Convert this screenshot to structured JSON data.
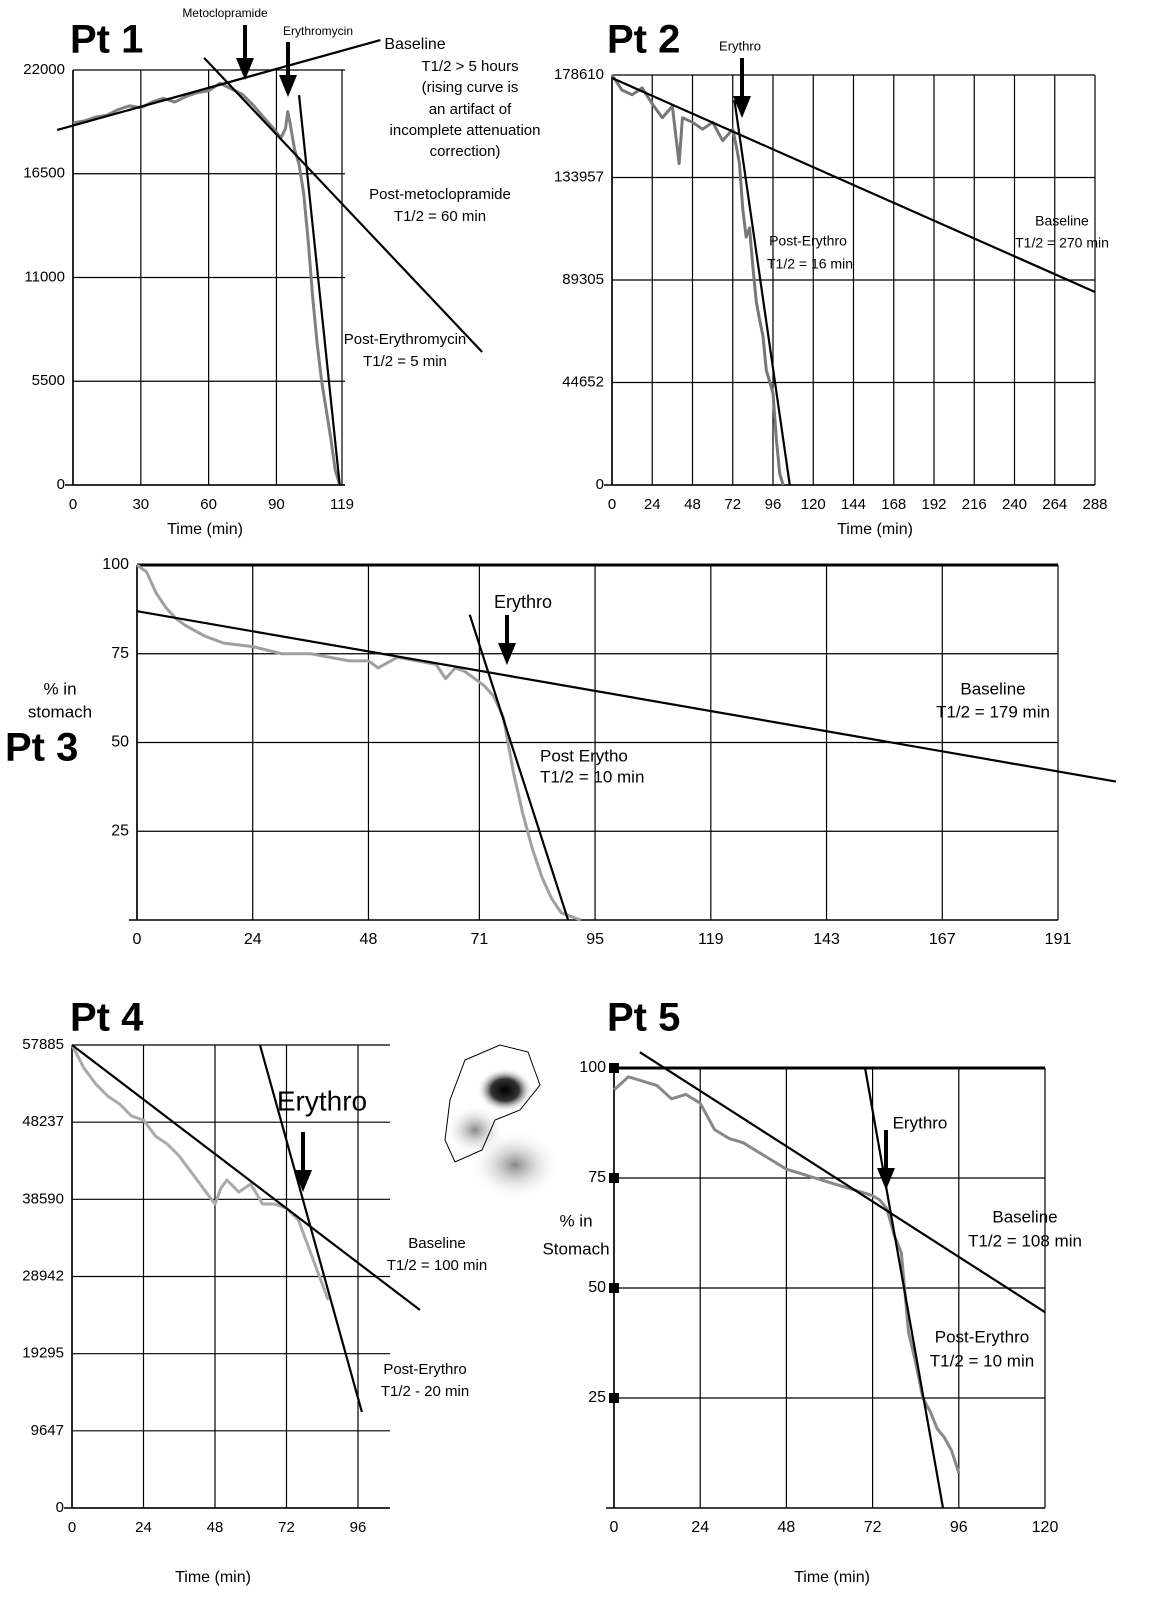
{
  "chart_data": [
    {
      "type": "line",
      "title": "Pt 1",
      "xlabel": "Time (min)",
      "xlim": [
        0,
        119
      ],
      "xticks": [
        0,
        30,
        60,
        90,
        119
      ],
      "ylim": [
        0,
        22000
      ],
      "yticks": [
        0,
        5500,
        11000,
        16500,
        22000
      ],
      "grid": true,
      "series": [
        {
          "color": "#808080",
          "x": [
            0,
            5,
            10,
            15,
            20,
            25,
            30,
            35,
            40,
            45,
            50,
            55,
            60,
            65,
            70,
            75,
            80,
            85,
            88,
            90,
            92,
            94,
            95,
            96,
            98,
            100,
            102,
            104,
            106,
            108,
            110,
            112,
            114,
            116,
            118
          ],
          "values": [
            19200,
            19300,
            19500,
            19600,
            19900,
            20100,
            20000,
            20300,
            20500,
            20300,
            20600,
            20800,
            20900,
            21300,
            21000,
            20700,
            20100,
            19400,
            19000,
            18700,
            18400,
            18900,
            19800,
            19200,
            17800,
            17000,
            15500,
            13000,
            10000,
            7500,
            5500,
            4000,
            2500,
            800,
            0
          ]
        },
        {
          "color": "#000000",
          "x": [
            -7,
            136
          ],
          "values": [
            18820,
            23590
          ]
        },
        {
          "color": "#000000",
          "x": [
            58,
            181
          ],
          "values": [
            22640,
            7050
          ]
        },
        {
          "color": "#000000",
          "x": [
            100,
            118
          ],
          "values": [
            20670,
            0
          ]
        }
      ],
      "annotations": [
        "Metoclopramide",
        "Erythromycin",
        "Baseline",
        "T1/2 > 5 hours",
        "(rising curve is",
        "an artifact of",
        "incomplete attenuation",
        "correction)",
        "Post-metoclopramide",
        "T1/2 = 60 min",
        "Post-Erythromycin",
        "T1/2 = 5 min"
      ]
    },
    {
      "type": "line",
      "title": "Pt 2",
      "xlabel": "Time (min)",
      "xlim": [
        0,
        288
      ],
      "xticks": [
        0,
        24,
        48,
        72,
        96,
        120,
        144,
        168,
        192,
        216,
        240,
        264,
        288
      ],
      "ylim": [
        0,
        178610
      ],
      "yticks": [
        0,
        44652,
        89305,
        133957,
        178610
      ],
      "grid": true,
      "series": [
        {
          "color": "#777777",
          "x": [
            0,
            6,
            12,
            18,
            24,
            30,
            36,
            40,
            42,
            48,
            54,
            60,
            66,
            72,
            74,
            76,
            78,
            80,
            82,
            84,
            86,
            88,
            90,
            92,
            94,
            96,
            98,
            100,
            102
          ],
          "values": [
            178610,
            172000,
            170000,
            173000,
            166000,
            160000,
            165000,
            140000,
            160000,
            158000,
            155000,
            158000,
            150000,
            155000,
            148000,
            140000,
            120000,
            108000,
            112000,
            95000,
            80000,
            72000,
            65000,
            50000,
            45000,
            40000,
            20000,
            5000,
            0
          ]
        },
        {
          "color": "#000000",
          "x": [
            0,
            288
          ],
          "values": [
            177300,
            84080
          ]
        },
        {
          "color": "#000000",
          "x": [
            73,
            106
          ],
          "values": [
            167700,
            0
          ]
        }
      ],
      "annotations": [
        "Erythro",
        "Post-Erythro",
        "T1/2 = 16 min",
        "Baseline",
        "T1/2 = 270 min"
      ]
    },
    {
      "type": "line",
      "title": "Pt 3",
      "ylabel": [
        "% in",
        "stomach"
      ],
      "xlim": [
        0,
        191
      ],
      "xticks": [
        0,
        24,
        48,
        71,
        95,
        119,
        143,
        167,
        191
      ],
      "ylim": [
        0,
        100
      ],
      "yticks": [
        25,
        50,
        75,
        100
      ],
      "grid": true,
      "series": [
        {
          "color": "#a0a0a0",
          "x": [
            0,
            2,
            4,
            6,
            8,
            10,
            14,
            18,
            24,
            30,
            36,
            40,
            44,
            48,
            50,
            54,
            58,
            62,
            64,
            66,
            68,
            70,
            72,
            74,
            76,
            78,
            80,
            82,
            84,
            86,
            88,
            90,
            92
          ],
          "values": [
            100,
            98,
            92,
            88,
            85,
            83,
            80,
            78,
            77,
            75,
            75,
            74,
            73,
            73,
            71,
            74,
            73,
            72,
            68,
            71,
            70,
            68,
            66,
            63,
            57,
            42,
            30,
            20,
            12,
            6,
            2,
            1,
            0
          ]
        },
        {
          "color": "#000000",
          "x": [
            0,
            203
          ],
          "values": [
            87,
            39
          ]
        },
        {
          "color": "#000000",
          "x": [
            69,
            89.4
          ],
          "values": [
            86,
            0
          ]
        }
      ],
      "annotations": [
        "Erythro",
        "Post Erytho",
        "T1/2 = 10 min",
        "Baseline",
        "T1/2 = 179 min"
      ]
    },
    {
      "type": "line",
      "title": "Pt 4",
      "xlabel": "Time (min)",
      "xlim": [
        0,
        96
      ],
      "xticks": [
        0,
        24,
        48,
        72,
        96
      ],
      "ylim": [
        0,
        57885
      ],
      "yticks": [
        0,
        9647,
        19295,
        28942,
        38590,
        48237,
        57885
      ],
      "grid": true,
      "series": [
        {
          "color": "#aaaaaa",
          "x": [
            0,
            4,
            8,
            12,
            16,
            20,
            24,
            28,
            32,
            36,
            40,
            44,
            48,
            50,
            52,
            56,
            60,
            64,
            68,
            72,
            76,
            80,
            84,
            86
          ],
          "values": [
            57885,
            55000,
            53000,
            51500,
            50500,
            49000,
            48500,
            46500,
            45500,
            44000,
            42000,
            40000,
            38000,
            40000,
            41000,
            39500,
            40500,
            38000,
            38000,
            37500,
            36000,
            32000,
            28000,
            26000
          ]
        },
        {
          "color": "#000000",
          "x": [
            0,
            116.8
          ],
          "values": [
            57885,
            24750
          ]
        },
        {
          "color": "#000000",
          "x": [
            63.1,
            97.3
          ],
          "values": [
            57885,
            12000
          ]
        }
      ],
      "annotations": [
        "Erythro",
        "Baseline",
        "T1/2 = 100 min",
        "Post-Erythro",
        "T1/2 - 20 min"
      ]
    },
    {
      "type": "line",
      "title": "Pt 5",
      "xlabel": "Time (min)",
      "ylabel": [
        "% in",
        "Stomach"
      ],
      "xlim": [
        0,
        120
      ],
      "xticks": [
        0,
        24,
        48,
        72,
        96,
        120
      ],
      "ylim": [
        0,
        100
      ],
      "yticks": [
        25,
        50,
        75,
        100
      ],
      "grid": true,
      "series": [
        {
          "color": "#888888",
          "x": [
            0,
            4,
            8,
            12,
            16,
            20,
            24,
            28,
            32,
            36,
            40,
            44,
            48,
            52,
            56,
            60,
            64,
            68,
            72,
            74,
            76,
            78,
            80,
            82,
            84,
            86,
            88,
            90,
            92,
            94,
            96
          ],
          "values": [
            95,
            98,
            97,
            96,
            93,
            94,
            92,
            86,
            84,
            83,
            81,
            79,
            77,
            76,
            75,
            74,
            73,
            72,
            71,
            70,
            68,
            62,
            58,
            40,
            33,
            25,
            22,
            18,
            16,
            13,
            8
          ]
        },
        {
          "color": "#000000",
          "x": [
            7.2,
            120
          ],
          "values": [
            103.6,
            44.5
          ]
        },
        {
          "color": "#000000",
          "x": [
            69.9,
            91.6
          ],
          "values": [
            100,
            0
          ]
        }
      ],
      "annotations": [
        "Erythro",
        "Baseline",
        "T1/2 = 108 min",
        "Post-Erythro",
        "T1/2 = 10 min"
      ]
    }
  ]
}
